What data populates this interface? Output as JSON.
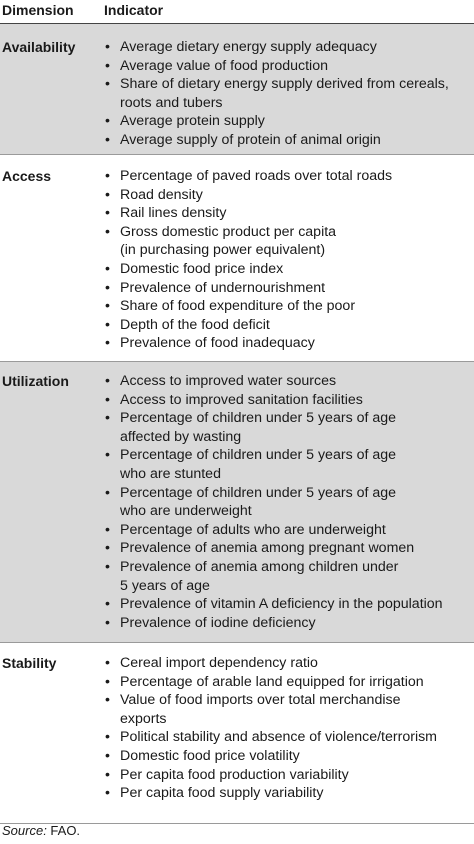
{
  "headers": {
    "dimension": "Dimension",
    "indicator": "Indicator"
  },
  "groups": [
    {
      "dimension": "Availability",
      "indicators": [
        [
          "Average dietary energy supply adequacy"
        ],
        [
          "Average value of food production"
        ],
        [
          "Share of dietary energy supply derived from cereals,",
          "roots and tubers"
        ],
        [
          "Average protein supply"
        ],
        [
          "Average supply of protein of animal origin"
        ]
      ]
    },
    {
      "dimension": "Access",
      "indicators": [
        [
          "Percentage of paved roads over total roads"
        ],
        [
          "Road density"
        ],
        [
          "Rail lines density"
        ],
        [
          "Gross domestic product per capita",
          "(in purchasing power equivalent)"
        ],
        [
          "Domestic food price index"
        ],
        [
          "Prevalence of undernourishment"
        ],
        [
          "Share of food expenditure of the poor"
        ],
        [
          "Depth of the food deficit"
        ],
        [
          "Prevalence of food inadequacy"
        ]
      ]
    },
    {
      "dimension": "Utilization",
      "indicators": [
        [
          "Access to improved water sources"
        ],
        [
          "Access to improved sanitation facilities"
        ],
        [
          "Percentage of children under 5 years of age",
          "affected by wasting"
        ],
        [
          "Percentage of children under 5 years of age",
          "who are stunted"
        ],
        [
          "Percentage of children under 5 years of age",
          "who are underweight"
        ],
        [
          "Percentage of adults who are underweight"
        ],
        [
          "Prevalence of anemia among pregnant women"
        ],
        [
          "Prevalence of anemia among children under",
          "5 years of age"
        ],
        [
          "Prevalence of vitamin A deficiency in the population"
        ],
        [
          "Prevalence of iodine deficiency"
        ]
      ]
    },
    {
      "dimension": "Stability",
      "indicators": [
        [
          "Cereal import dependency ratio"
        ],
        [
          "Percentage of arable land equipped for irrigation"
        ],
        [
          "Value of food imports over total merchandise",
          "exports"
        ],
        [
          "Political stability and absence of violence/terrorism"
        ],
        [
          "Domestic food price volatility"
        ],
        [
          "Per capita food production variability"
        ],
        [
          "Per capita food supply variability"
        ]
      ]
    }
  ],
  "source": {
    "label": "Source:",
    "text": " FAO."
  }
}
